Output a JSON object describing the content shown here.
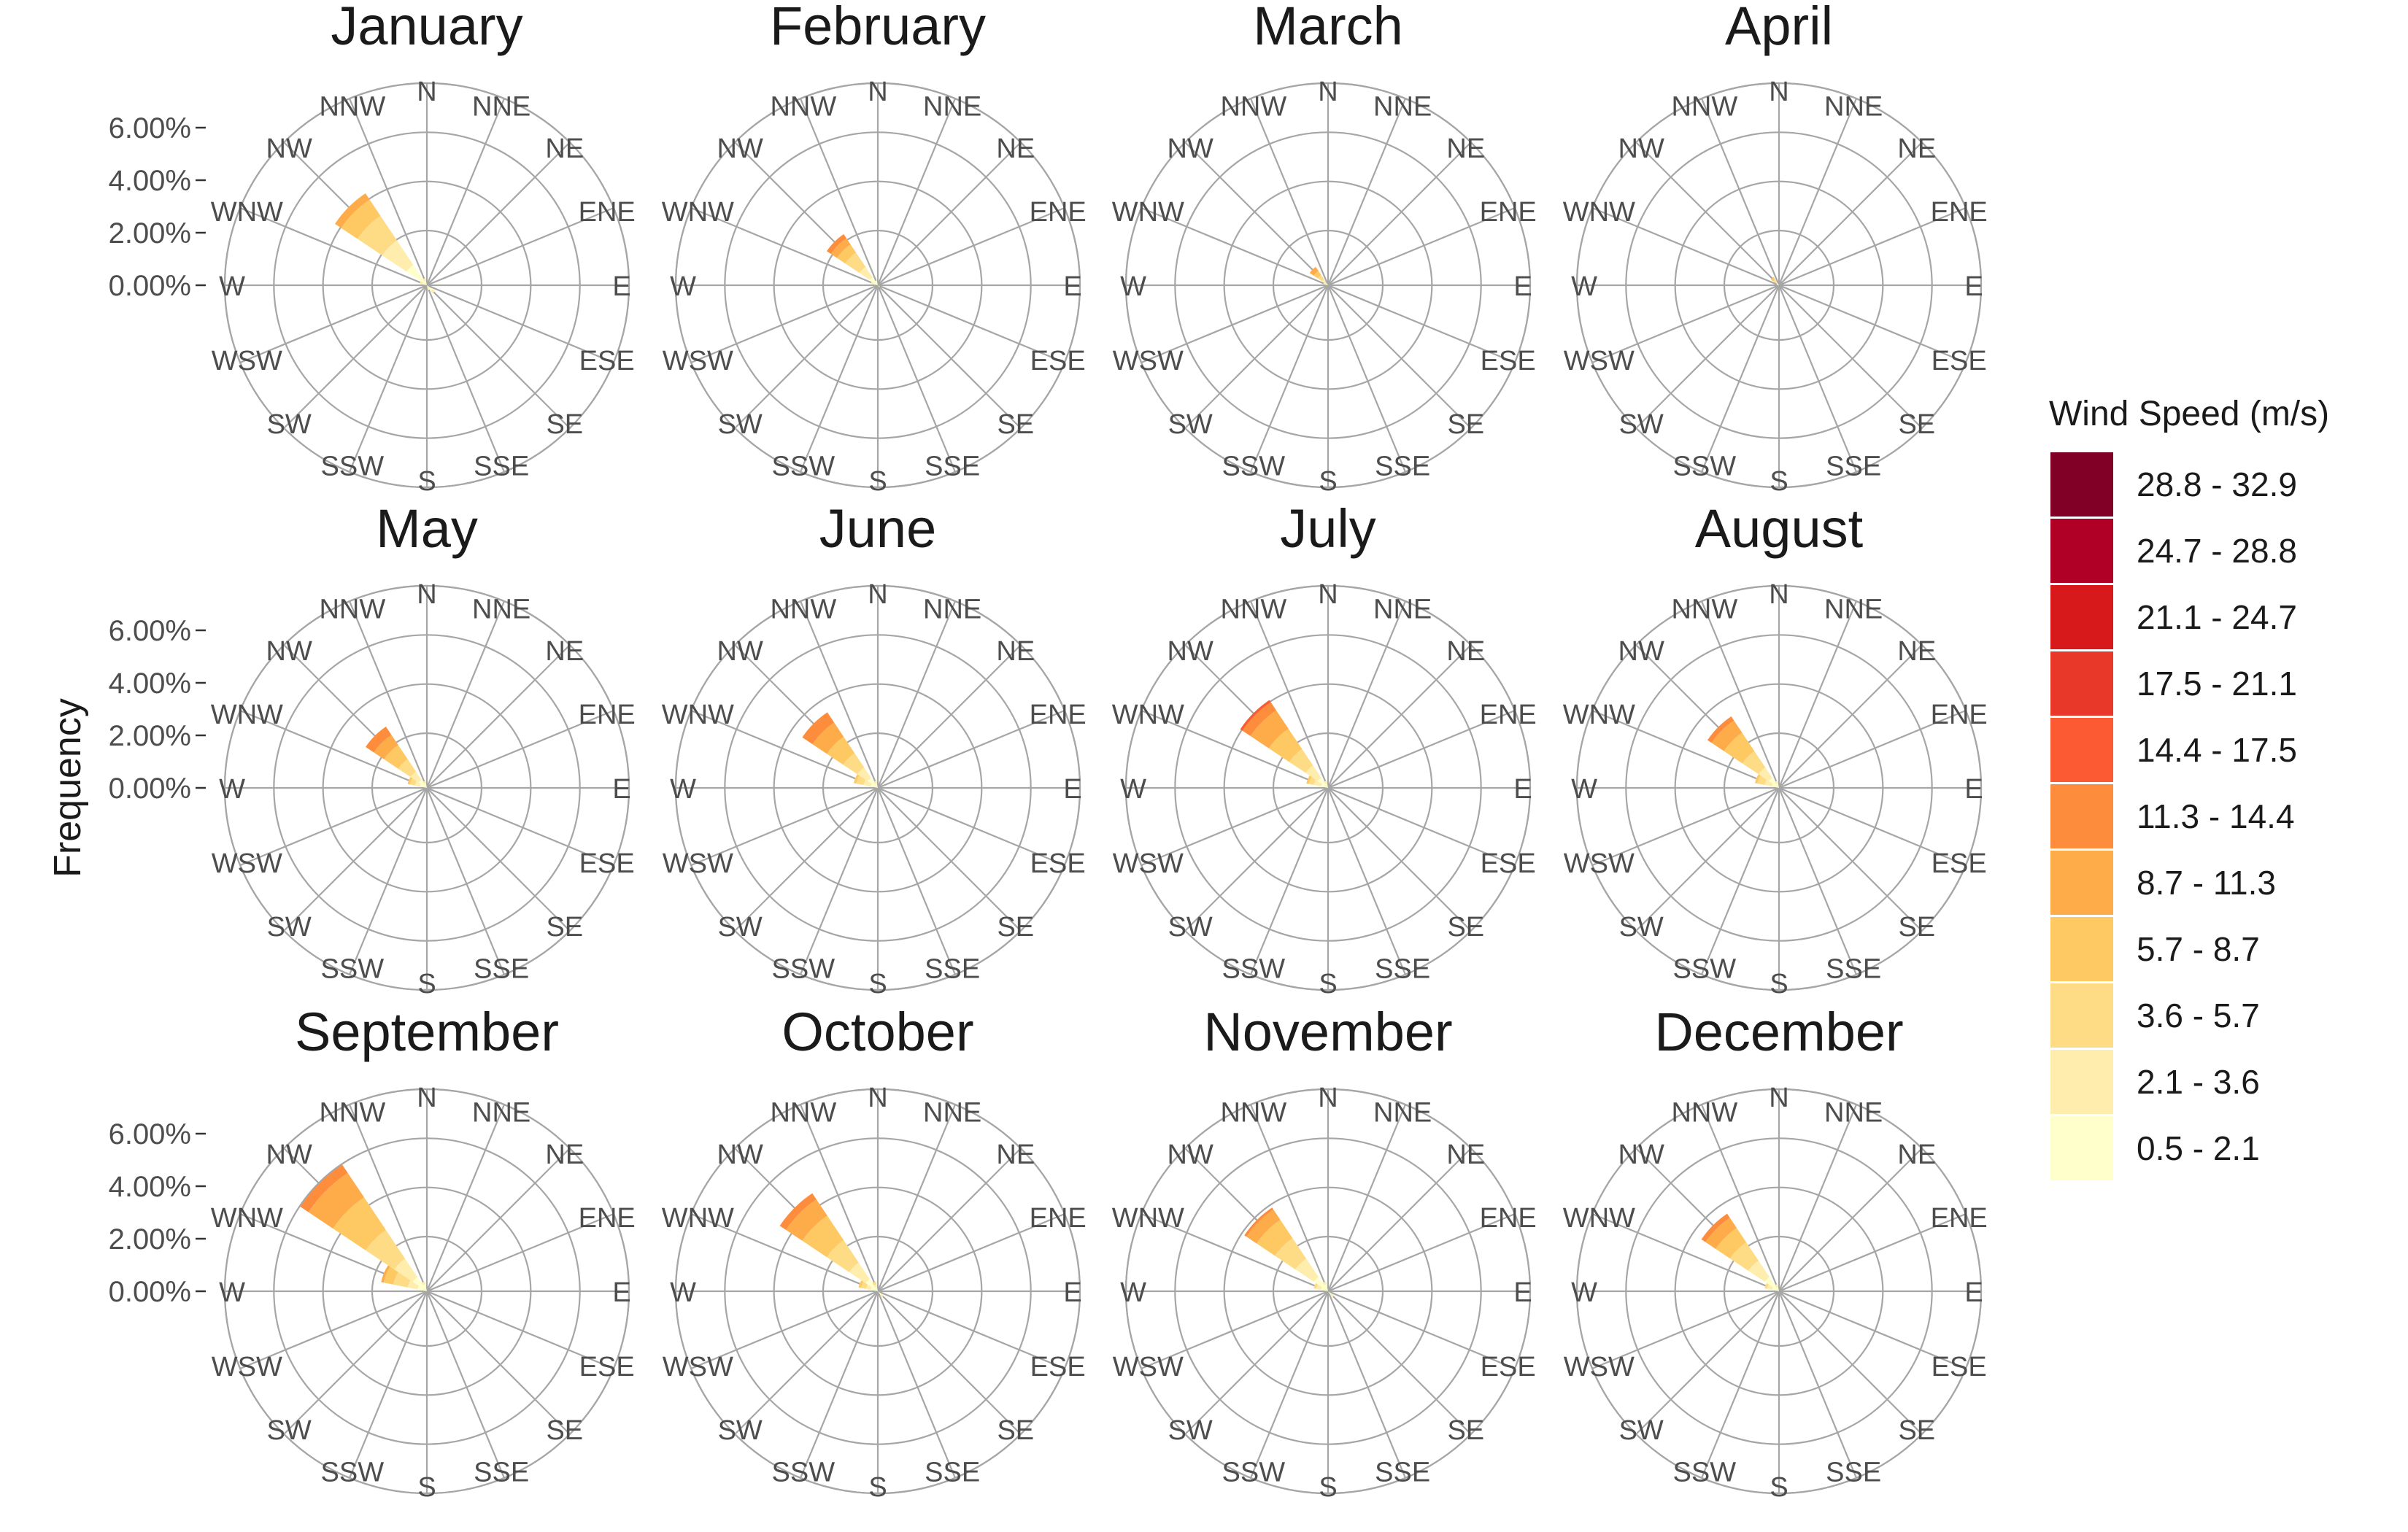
{
  "chart_data": {
    "type": "wind-rose",
    "ylabel": "Frequency",
    "y_ticks": [
      "0.00%",
      "2.00%",
      "4.00%",
      "6.00%"
    ],
    "y_max_percent": 7.5,
    "directions": [
      "N",
      "NNE",
      "NE",
      "ENE",
      "E",
      "ESE",
      "SE",
      "SSE",
      "S",
      "SSW",
      "SW",
      "WSW",
      "W",
      "WNW",
      "NW",
      "NNW"
    ],
    "legend": {
      "title": "Wind Speed (m/s)",
      "bins": [
        {
          "label": "28.8 - 32.9",
          "color": "#800026"
        },
        {
          "label": "24.7 - 28.8",
          "color": "#b10026"
        },
        {
          "label": "21.1 - 24.7",
          "color": "#d7191c"
        },
        {
          "label": "17.5 - 21.1",
          "color": "#e8382a"
        },
        {
          "label": "14.4 - 17.5",
          "color": "#fc5a33"
        },
        {
          "label": "11.3 - 14.4",
          "color": "#fd8d3c"
        },
        {
          "label": "8.7 - 11.3",
          "color": "#feab4a"
        },
        {
          "label": "5.7 - 8.7",
          "color": "#fec963"
        },
        {
          "label": "3.6 - 5.7",
          "color": "#fedc86"
        },
        {
          "label": "2.1 - 3.6",
          "color": "#ffedad"
        },
        {
          "label": "0.5 - 2.1",
          "color": "#ffffcc"
        }
      ]
    },
    "bin_order_inner_to_outer": [
      "0.5 - 2.1",
      "2.1 - 3.6",
      "3.6 - 5.7",
      "5.7 - 8.7",
      "8.7 - 11.3",
      "11.3 - 14.4",
      "14.4 - 17.5"
    ],
    "panels": [
      {
        "month": "January",
        "sectors": [
          {
            "dir": "NW",
            "values": [
              1.0,
              1.2,
              1.2,
              0.8,
              0.3,
              0,
              0
            ]
          },
          {
            "dir": "WNW",
            "values": [
              0.2,
              0.1,
              0,
              0,
              0,
              0,
              0
            ]
          },
          {
            "dir": "NNW",
            "values": [
              0.2,
              0.1,
              0,
              0,
              0,
              0,
              0
            ]
          },
          {
            "dir": "SE",
            "values": [
              0.3,
              0.1,
              0,
              0,
              0,
              0,
              0
            ]
          },
          {
            "dir": "SSE",
            "values": [
              0.2,
              0,
              0,
              0,
              0,
              0,
              0
            ]
          }
        ]
      },
      {
        "month": "February",
        "sectors": [
          {
            "dir": "NW",
            "values": [
              0.4,
              0.5,
              0.7,
              0.4,
              0.3,
              0.2,
              0
            ]
          },
          {
            "dir": "WNW",
            "values": [
              0.2,
              0.1,
              0,
              0,
              0,
              0,
              0
            ]
          },
          {
            "dir": "NNW",
            "values": [
              0.2,
              0,
              0,
              0,
              0,
              0,
              0
            ]
          },
          {
            "dir": "SE",
            "values": [
              0.1,
              0,
              0,
              0,
              0,
              0,
              0
            ]
          }
        ]
      },
      {
        "month": "March",
        "sectors": [
          {
            "dir": "NW",
            "values": [
              0.1,
              0.2,
              0.2,
              0.2,
              0.2,
              0,
              0
            ]
          },
          {
            "dir": "WNW",
            "values": [
              0.1,
              0.1,
              0,
              0,
              0,
              0,
              0
            ]
          }
        ]
      },
      {
        "month": "April",
        "sectors": [
          {
            "dir": "NW",
            "values": [
              0.1,
              0.1,
              0.1,
              0.1,
              0,
              0,
              0
            ]
          },
          {
            "dir": "WNW",
            "values": [
              0.1,
              0,
              0,
              0,
              0,
              0,
              0
            ]
          }
        ]
      },
      {
        "month": "May",
        "sectors": [
          {
            "dir": "NW",
            "values": [
              0.4,
              0.4,
              0.6,
              0.7,
              0.5,
              0.4,
              0
            ]
          },
          {
            "dir": "WNW",
            "values": [
              0.3,
              0.2,
              0.2,
              0.1,
              0,
              0,
              0
            ]
          },
          {
            "dir": "NNW",
            "values": [
              0.2,
              0.1,
              0,
              0,
              0,
              0,
              0
            ]
          }
        ]
      },
      {
        "month": "June",
        "sectors": [
          {
            "dir": "NW",
            "values": [
              0.5,
              0.5,
              0.7,
              0.8,
              0.7,
              0.5,
              0
            ]
          },
          {
            "dir": "WNW",
            "values": [
              0.3,
              0.3,
              0.3,
              0.1,
              0,
              0,
              0
            ]
          },
          {
            "dir": "NNW",
            "values": [
              0.2,
              0.1,
              0,
              0,
              0,
              0,
              0
            ]
          }
        ]
      },
      {
        "month": "July",
        "sectors": [
          {
            "dir": "NW",
            "values": [
              0.5,
              0.6,
              0.8,
              1.0,
              0.9,
              0.4,
              0.1
            ]
          },
          {
            "dir": "WNW",
            "values": [
              0.3,
              0.3,
              0.2,
              0.1,
              0,
              0,
              0
            ]
          },
          {
            "dir": "NNW",
            "values": [
              0.2,
              0.1,
              0,
              0,
              0,
              0,
              0
            ]
          }
        ]
      },
      {
        "month": "August",
        "sectors": [
          {
            "dir": "NW",
            "values": [
              0.5,
              0.5,
              0.8,
              0.9,
              0.6,
              0.2,
              0
            ]
          },
          {
            "dir": "WNW",
            "values": [
              0.3,
              0.3,
              0.3,
              0.1,
              0,
              0,
              0
            ]
          },
          {
            "dir": "NNW",
            "values": [
              0.2,
              0.1,
              0,
              0,
              0,
              0,
              0
            ]
          }
        ]
      },
      {
        "month": "September",
        "sectors": [
          {
            "dir": "NW",
            "values": [
              0.7,
              0.9,
              1.4,
              1.6,
              1.2,
              0.4,
              0
            ]
          },
          {
            "dir": "WNW",
            "values": [
              0.4,
              0.4,
              0.6,
              0.4,
              0.1,
              0,
              0
            ]
          },
          {
            "dir": "NNW",
            "values": [
              0.3,
              0.1,
              0,
              0,
              0,
              0,
              0
            ]
          }
        ]
      },
      {
        "month": "October",
        "sectors": [
          {
            "dir": "NW",
            "values": [
              0.6,
              0.8,
              1.1,
              1.2,
              0.8,
              0.3,
              0
            ]
          },
          {
            "dir": "WNW",
            "values": [
              0.3,
              0.2,
              0.2,
              0.1,
              0,
              0,
              0
            ]
          },
          {
            "dir": "NNW",
            "values": [
              0.2,
              0.1,
              0.1,
              0,
              0,
              0,
              0
            ]
          },
          {
            "dir": "SE",
            "values": [
              0.2,
              0.1,
              0,
              0,
              0,
              0,
              0
            ]
          }
        ]
      },
      {
        "month": "November",
        "sectors": [
          {
            "dir": "NW",
            "values": [
              0.7,
              0.9,
              1.0,
              0.9,
              0.5,
              0.1,
              0
            ]
          },
          {
            "dir": "WNW",
            "values": [
              0.3,
              0.2,
              0.1,
              0,
              0,
              0,
              0
            ]
          },
          {
            "dir": "NNW",
            "values": [
              0.3,
              0.1,
              0,
              0,
              0,
              0,
              0
            ]
          },
          {
            "dir": "SE",
            "values": [
              0.2,
              0.1,
              0,
              0,
              0,
              0,
              0
            ]
          }
        ]
      },
      {
        "month": "December",
        "sectors": [
          {
            "dir": "NW",
            "values": [
              0.7,
              0.8,
              0.9,
              0.7,
              0.5,
              0.2,
              0
            ]
          },
          {
            "dir": "WNW",
            "values": [
              0.3,
              0.2,
              0.1,
              0,
              0,
              0,
              0
            ]
          },
          {
            "dir": "NNW",
            "values": [
              0.2,
              0.1,
              0,
              0,
              0,
              0,
              0
            ]
          }
        ]
      }
    ]
  }
}
